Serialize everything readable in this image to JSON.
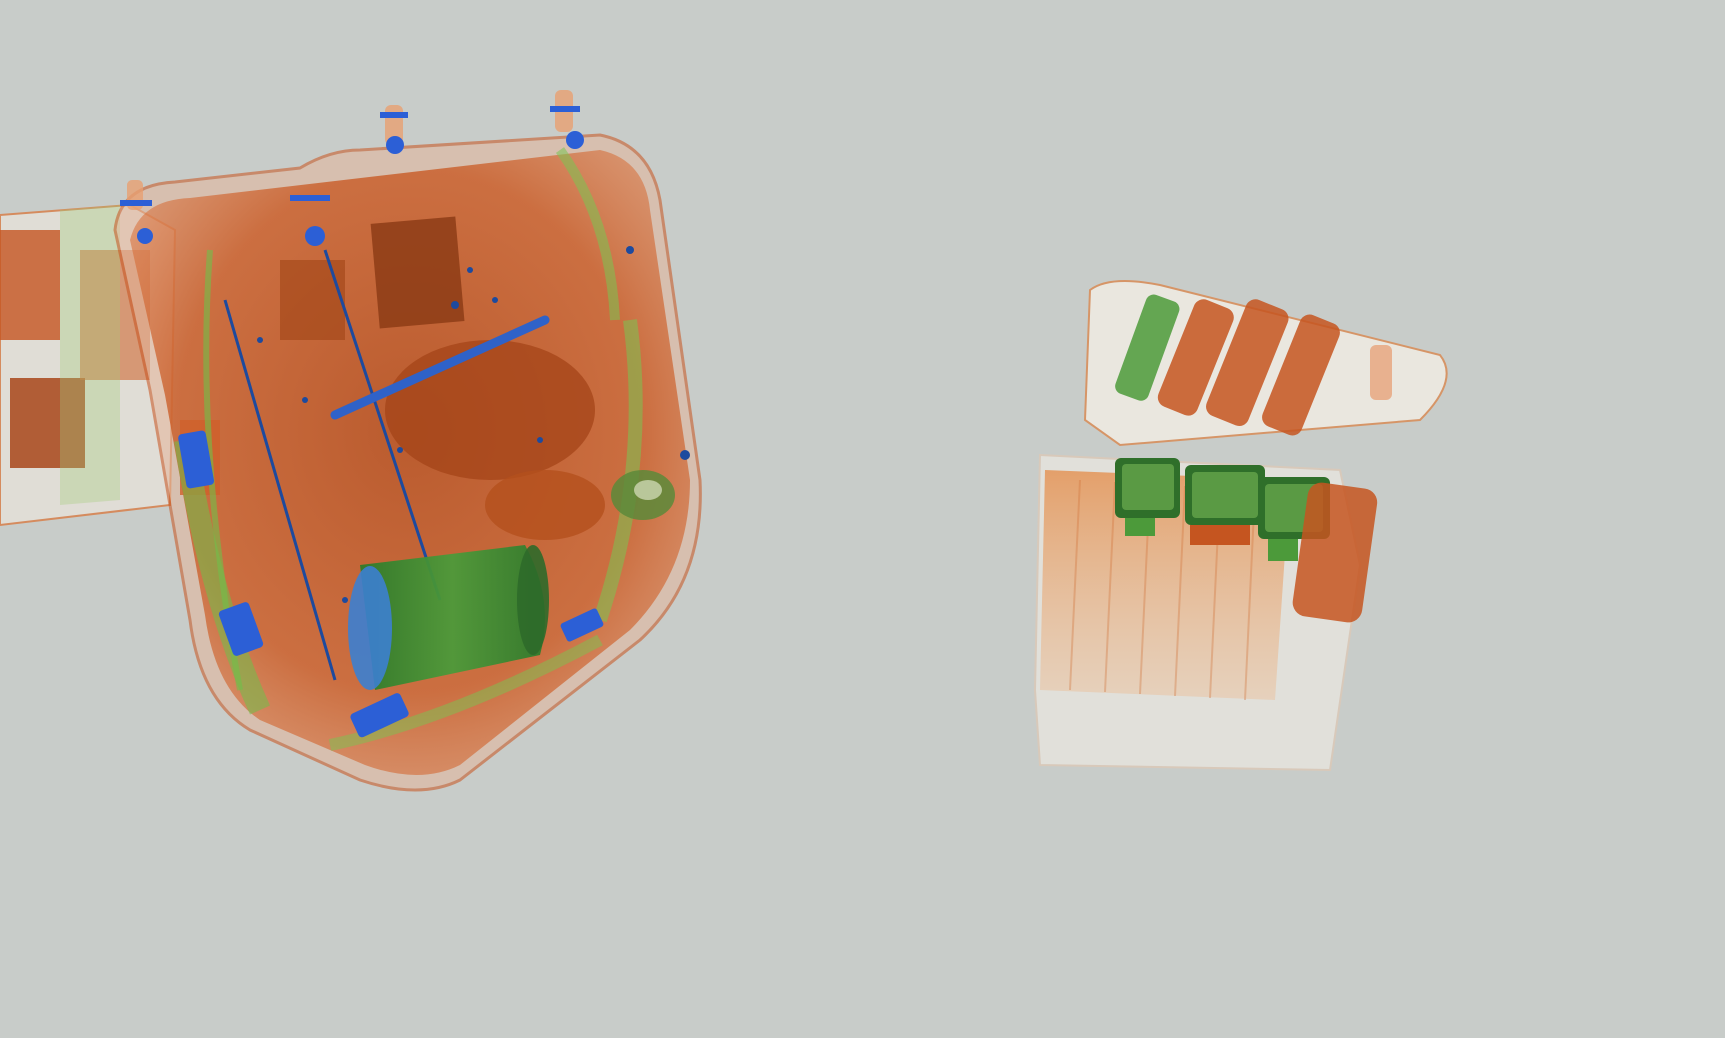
{
  "scene": {
    "kind": "x-ray baggage scan",
    "background_color": "#c8ccc9",
    "material_colors": {
      "organic": "#c8531e",
      "inorganic": "#6fae3c",
      "metal": "#2c5fd6",
      "low_density": "#ece9e2"
    },
    "objects": [
      {
        "id": "backpack",
        "contents": [
          "cylinder-container",
          "metal-rods",
          "buckles",
          "zipper-pulls",
          "strap-handle",
          "organic-items"
        ]
      },
      {
        "id": "small-box",
        "contents": [
          "bottles",
          "cartridges",
          "cup",
          "foam-tray"
        ]
      },
      {
        "id": "left-edge-bag",
        "contents": [
          "blocks"
        ]
      }
    ]
  }
}
